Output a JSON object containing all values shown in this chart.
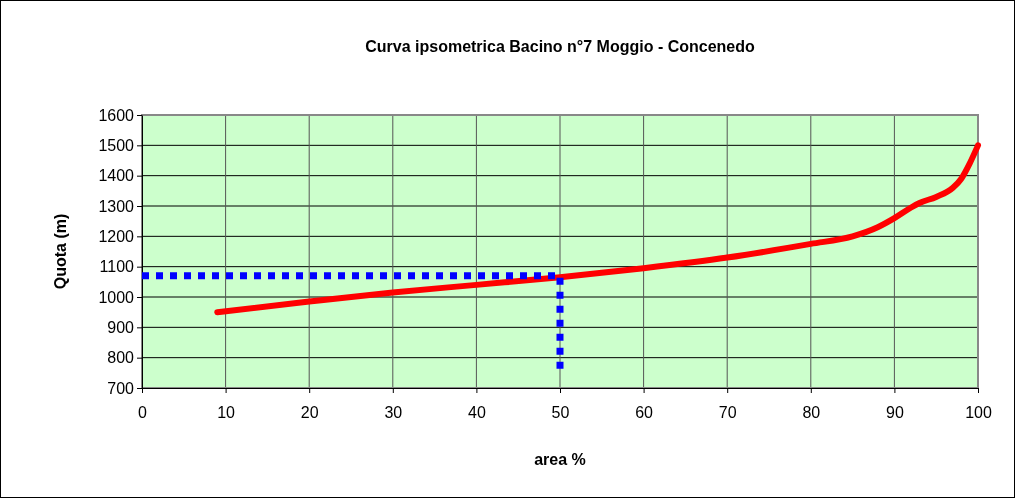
{
  "chart_data": {
    "type": "line",
    "title": "Curva ipsometrica Bacino n°7 Moggio - Concenedo",
    "xlabel": "area %",
    "ylabel": "Quota (m)",
    "xlim": [
      0,
      100
    ],
    "xticks": [
      0,
      10,
      20,
      30,
      40,
      50,
      60,
      70,
      80,
      90,
      100
    ],
    "ylim": [
      700,
      1600
    ],
    "yticks": [
      700,
      800,
      900,
      1000,
      1100,
      1200,
      1300,
      1400,
      1500,
      1600
    ],
    "grid": true,
    "series": [
      {
        "color": "#ff0000",
        "line_style": "solid",
        "x": [
          9,
          20,
          30,
          40,
          50,
          60,
          70,
          80,
          85,
          88,
          90,
          92,
          93,
          95,
          97,
          98,
          99,
          100
        ],
        "values": [
          950,
          985,
          1015,
          1040,
          1065,
          1095,
          1130,
          1175,
          1200,
          1230,
          1260,
          1295,
          1310,
          1330,
          1360,
          1390,
          1440,
          1500
        ]
      },
      {
        "color": "#0000ff",
        "line_style": "dotted",
        "x": [
          0,
          50,
          50
        ],
        "values": [
          1070,
          1070,
          745
        ]
      }
    ]
  }
}
